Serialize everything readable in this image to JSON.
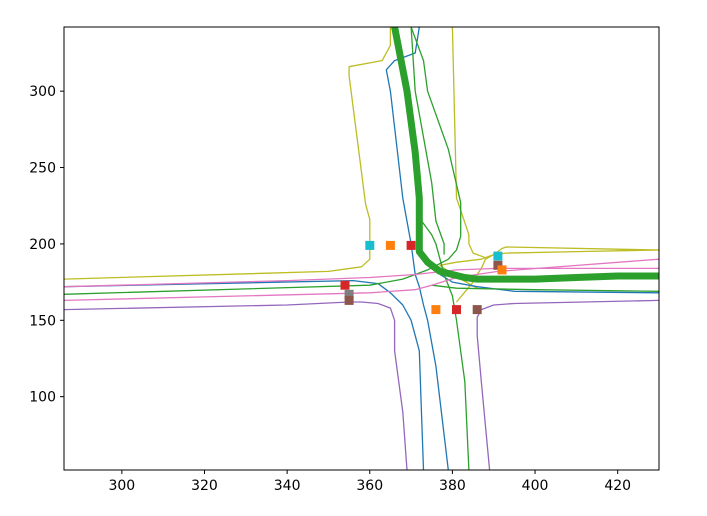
{
  "chart_data": {
    "type": "line",
    "title": "",
    "xlabel": "",
    "ylabel": "",
    "xlim": [
      286,
      430
    ],
    "ylim": [
      52,
      342
    ],
    "xticks": [
      300,
      320,
      340,
      360,
      380,
      400,
      420
    ],
    "yticks": [
      100,
      150,
      200,
      250,
      300
    ],
    "grid": false,
    "legend": "none",
    "series": [
      {
        "color": "#bcbd22",
        "points": [
          [
            286,
            177
          ],
          [
            350,
            182
          ],
          [
            358,
            185
          ],
          [
            360,
            190
          ],
          [
            360,
            216
          ],
          [
            359,
            226
          ],
          [
            355,
            310
          ],
          [
            355,
            316
          ],
          [
            363,
            320
          ],
          [
            365,
            330
          ],
          [
            365,
            342
          ]
        ]
      },
      {
        "color": "#bcbd22",
        "points": [
          [
            430,
            196
          ],
          [
            410,
            195
          ],
          [
            393,
            194
          ],
          [
            390,
            193
          ],
          [
            388,
            190
          ],
          [
            387,
            184
          ],
          [
            386,
            180
          ],
          [
            385,
            175
          ],
          [
            381,
            162
          ]
        ]
      },
      {
        "color": "#bcbd22",
        "points": [
          [
            386,
            171
          ],
          [
            380,
            180
          ],
          [
            377,
            186
          ],
          [
            381,
            188
          ],
          [
            387,
            190
          ],
          [
            390,
            193
          ],
          [
            392,
            197
          ],
          [
            393,
            198
          ],
          [
            430,
            196
          ]
        ]
      },
      {
        "color": "#bcbd22",
        "points": [
          [
            380,
            188
          ],
          [
            380,
            188
          ]
        ]
      },
      {
        "color": "#bcbd22",
        "points": [
          [
            388,
            191
          ],
          [
            385,
            194
          ],
          [
            384,
            200
          ],
          [
            384,
            206
          ],
          [
            382,
            222
          ],
          [
            381,
            230
          ],
          [
            380,
            342
          ]
        ]
      },
      {
        "color": "#1f77b4",
        "points": [
          [
            373,
            52
          ],
          [
            372,
            130
          ],
          [
            370,
            150
          ],
          [
            368,
            160
          ],
          [
            365,
            168
          ],
          [
            362,
            174
          ],
          [
            356,
            176
          ],
          [
            286,
            172
          ]
        ]
      },
      {
        "color": "#1f77b4",
        "points": [
          [
            379,
            52
          ],
          [
            376,
            120
          ],
          [
            374,
            150
          ],
          [
            373,
            160
          ],
          [
            372,
            172
          ],
          [
            371,
            180
          ],
          [
            370,
            200
          ],
          [
            368,
            230
          ],
          [
            365,
            300
          ],
          [
            364,
            314
          ],
          [
            366,
            320
          ],
          [
            371,
            325
          ],
          [
            372,
            342
          ]
        ]
      },
      {
        "color": "#1f77b4",
        "points": [
          [
            377,
            180
          ],
          [
            380,
            175
          ],
          [
            386,
            172
          ],
          [
            395,
            169
          ],
          [
            430,
            168
          ]
        ]
      },
      {
        "color": "#2ca02c",
        "points": [
          [
            286,
            167
          ],
          [
            360,
            173
          ],
          [
            368,
            177
          ],
          [
            374,
            183
          ],
          [
            379,
            190
          ],
          [
            381,
            196
          ],
          [
            382,
            205
          ],
          [
            382,
            227
          ],
          [
            379,
            262
          ],
          [
            374,
            300
          ],
          [
            373,
            320
          ],
          [
            370,
            342
          ]
        ]
      },
      {
        "color": "#2ca02c",
        "points": [
          [
            384,
            52
          ],
          [
            383,
            110
          ],
          [
            381,
            150
          ],
          [
            380,
            166
          ],
          [
            378,
            180
          ],
          [
            377,
            190
          ],
          [
            376,
            200
          ],
          [
            375,
            206
          ],
          [
            372,
            217
          ]
        ]
      },
      {
        "color": "#2ca02c",
        "points": [
          [
            375,
            173
          ],
          [
            381,
            171
          ],
          [
            400,
            170
          ],
          [
            430,
            169
          ]
        ]
      },
      {
        "color": "#2ca02c",
        "points": [
          [
            378,
            193
          ],
          [
            378,
            200
          ],
          [
            376,
            215
          ],
          [
            375,
            240
          ],
          [
            371,
            300
          ],
          [
            370,
            342
          ]
        ]
      },
      {
        "color": "#e377c2",
        "points": [
          [
            286,
            163
          ],
          [
            360,
            168
          ],
          [
            371,
            170
          ],
          [
            375,
            173
          ],
          [
            381,
            178
          ],
          [
            391,
            182
          ],
          [
            430,
            190
          ]
        ]
      },
      {
        "color": "#e377c2",
        "points": [
          [
            286,
            172
          ],
          [
            340,
            176
          ],
          [
            360,
            178
          ],
          [
            371,
            180
          ],
          [
            381,
            183
          ],
          [
            391,
            184
          ],
          [
            430,
            184
          ]
        ]
      },
      {
        "color": "#9467bd",
        "points": [
          [
            286,
            157
          ],
          [
            340,
            160
          ],
          [
            355,
            162
          ],
          [
            358,
            162
          ],
          [
            362,
            161
          ],
          [
            365,
            158
          ],
          [
            366,
            150
          ],
          [
            366,
            130
          ],
          [
            367,
            110
          ],
          [
            368,
            90
          ],
          [
            369,
            52
          ]
        ]
      },
      {
        "color": "#9467bd",
        "points": [
          [
            389,
            52
          ],
          [
            387,
            110
          ],
          [
            386,
            140
          ],
          [
            386,
            152
          ],
          [
            387,
            157
          ],
          [
            390,
            160
          ],
          [
            395,
            161
          ],
          [
            430,
            163
          ]
        ]
      },
      {
        "color": "#2ca02c",
        "width": "thick",
        "points": [
          [
            366,
            342
          ],
          [
            369,
            300
          ],
          [
            371,
            260
          ],
          [
            372,
            230
          ],
          [
            372,
            210
          ],
          [
            372,
            195
          ],
          [
            374,
            188
          ],
          [
            377,
            182
          ],
          [
            380,
            180
          ],
          [
            383,
            178
          ],
          [
            386,
            177
          ],
          [
            390,
            177
          ],
          [
            400,
            177
          ],
          [
            410,
            178
          ],
          [
            420,
            179
          ],
          [
            430,
            179
          ]
        ]
      }
    ],
    "markers": [
      {
        "color": "#17becf",
        "x": 360,
        "y": 199
      },
      {
        "color": "#ff7f0e",
        "x": 365,
        "y": 199
      },
      {
        "color": "#d62728",
        "x": 370,
        "y": 199
      },
      {
        "color": "#17becf",
        "x": 391,
        "y": 192
      },
      {
        "color": "#8c564b",
        "x": 391,
        "y": 186
      },
      {
        "color": "#ff7f0e",
        "x": 392,
        "y": 183
      },
      {
        "color": "#d62728",
        "x": 354,
        "y": 173
      },
      {
        "color": "#7f7f7f",
        "x": 355,
        "y": 167
      },
      {
        "color": "#8c564b",
        "x": 355,
        "y": 163
      },
      {
        "color": "#ff7f0e",
        "x": 376,
        "y": 157
      },
      {
        "color": "#d62728",
        "x": 381,
        "y": 157
      },
      {
        "color": "#8c564b",
        "x": 386,
        "y": 157
      }
    ]
  }
}
